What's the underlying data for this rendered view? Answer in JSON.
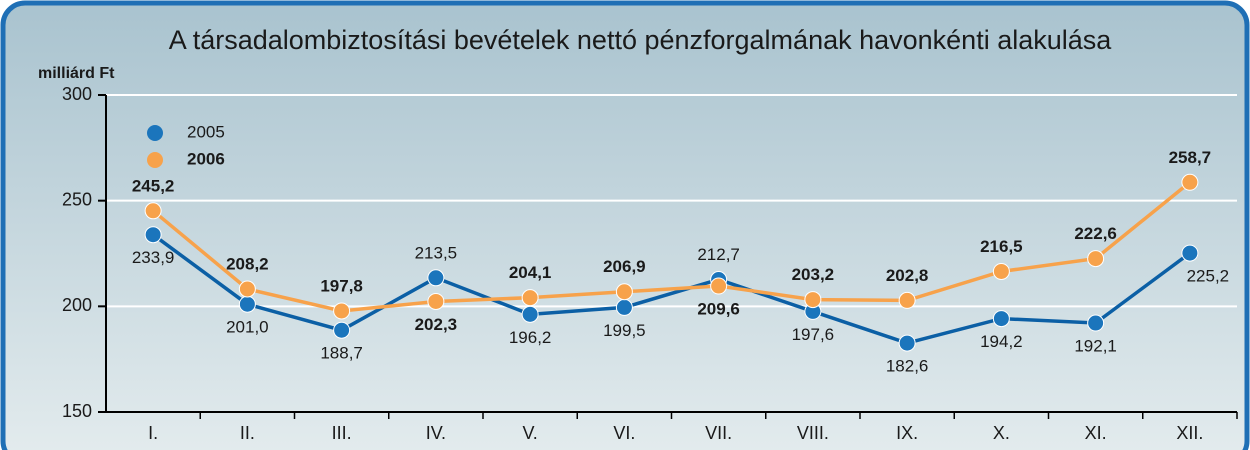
{
  "chart_data": {
    "type": "line",
    "title": "A társadalombiztosítási bevételek nettó pénzforgalmának havonkénti alakulása",
    "y_label": "milliárd Ft",
    "categories": [
      "I.",
      "II.",
      "III.",
      "IV.",
      "V.",
      "VI.",
      "VII.",
      "VIII.",
      "IX.",
      "X.",
      "XI.",
      "XII."
    ],
    "series": [
      {
        "name": "2005",
        "color": "#1b75bc",
        "values": [
          233.9,
          201.0,
          188.7,
          213.5,
          196.2,
          199.5,
          212.7,
          197.6,
          182.6,
          194.2,
          192.1,
          225.2
        ],
        "value_labels": [
          "233,9",
          "201,0",
          "188,7",
          "213,5",
          "196,2",
          "199,5",
          "212,7",
          "197,6",
          "182,6",
          "194,2",
          "192,1",
          "225,2"
        ]
      },
      {
        "name": "2006",
        "color": "#f7a24b",
        "values": [
          245.2,
          208.2,
          197.8,
          202.3,
          204.1,
          206.9,
          209.6,
          203.2,
          202.8,
          216.5,
          222.6,
          258.7
        ],
        "value_labels": [
          "245,2",
          "208,2",
          "197,8",
          "202,3",
          "204,1",
          "206,9",
          "209,6",
          "203,2",
          "202,8",
          "216,5",
          "222,6",
          "258,7"
        ]
      }
    ],
    "ylim": [
      150,
      300
    ],
    "yticks": [
      150,
      200,
      250,
      300
    ],
    "grid": true,
    "legend": "upper left"
  }
}
